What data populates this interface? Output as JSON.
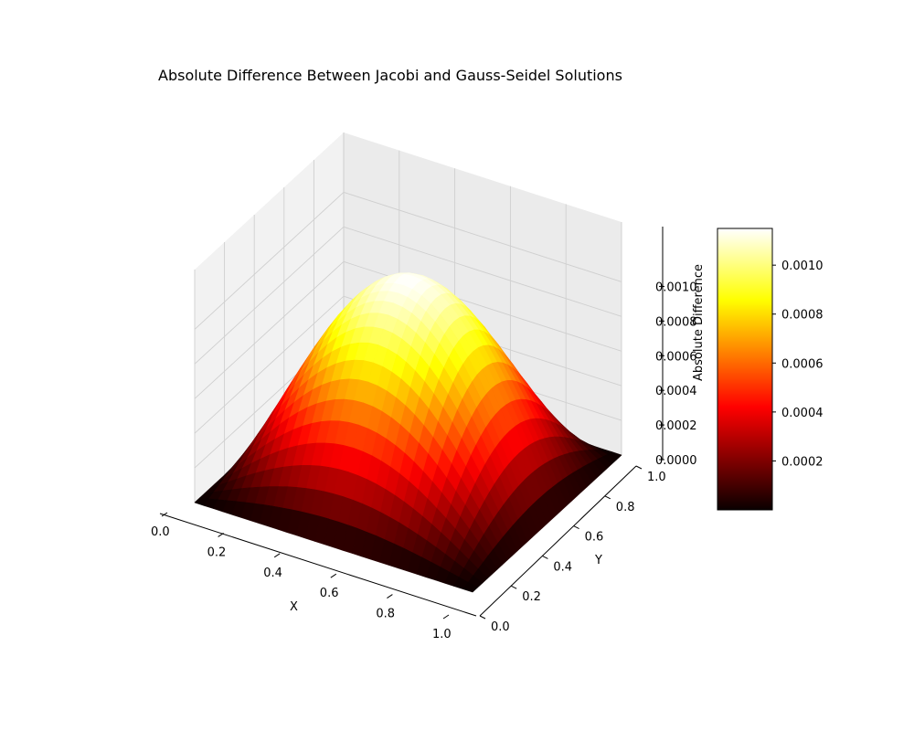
{
  "chart_data": {
    "type": "surface3d",
    "title": "Absolute Difference Between Jacobi and Gauss-Seidel Solutions",
    "xlabel": "X",
    "ylabel": "Y",
    "zlabel": "Absolute Difference",
    "xlim": [
      0,
      1
    ],
    "ylim": [
      0,
      1
    ],
    "zlim": [
      0,
      0.00115
    ],
    "x_ticks": [
      "0.0",
      "0.2",
      "0.4",
      "0.6",
      "0.8",
      "1.0"
    ],
    "y_ticks": [
      "0.0",
      "0.2",
      "0.4",
      "0.6",
      "0.8",
      "1.0"
    ],
    "z_ticks": [
      "0.0000",
      "0.0002",
      "0.0004",
      "0.0006",
      "0.0008",
      "0.0010"
    ],
    "surface": {
      "function": "z_max * sin(pi*x) * sin(pi*y)",
      "z_max": 0.00115,
      "grid_n": 30
    },
    "colormap": "hot",
    "grid": true,
    "colorbar": {
      "min": 0.0,
      "max": 0.00115,
      "ticks": [
        "0.0002",
        "0.0004",
        "0.0006",
        "0.0008",
        "0.0010"
      ],
      "tick_values": [
        0.0002,
        0.0004,
        0.0006,
        0.0008,
        0.001
      ],
      "placement": "right"
    }
  }
}
